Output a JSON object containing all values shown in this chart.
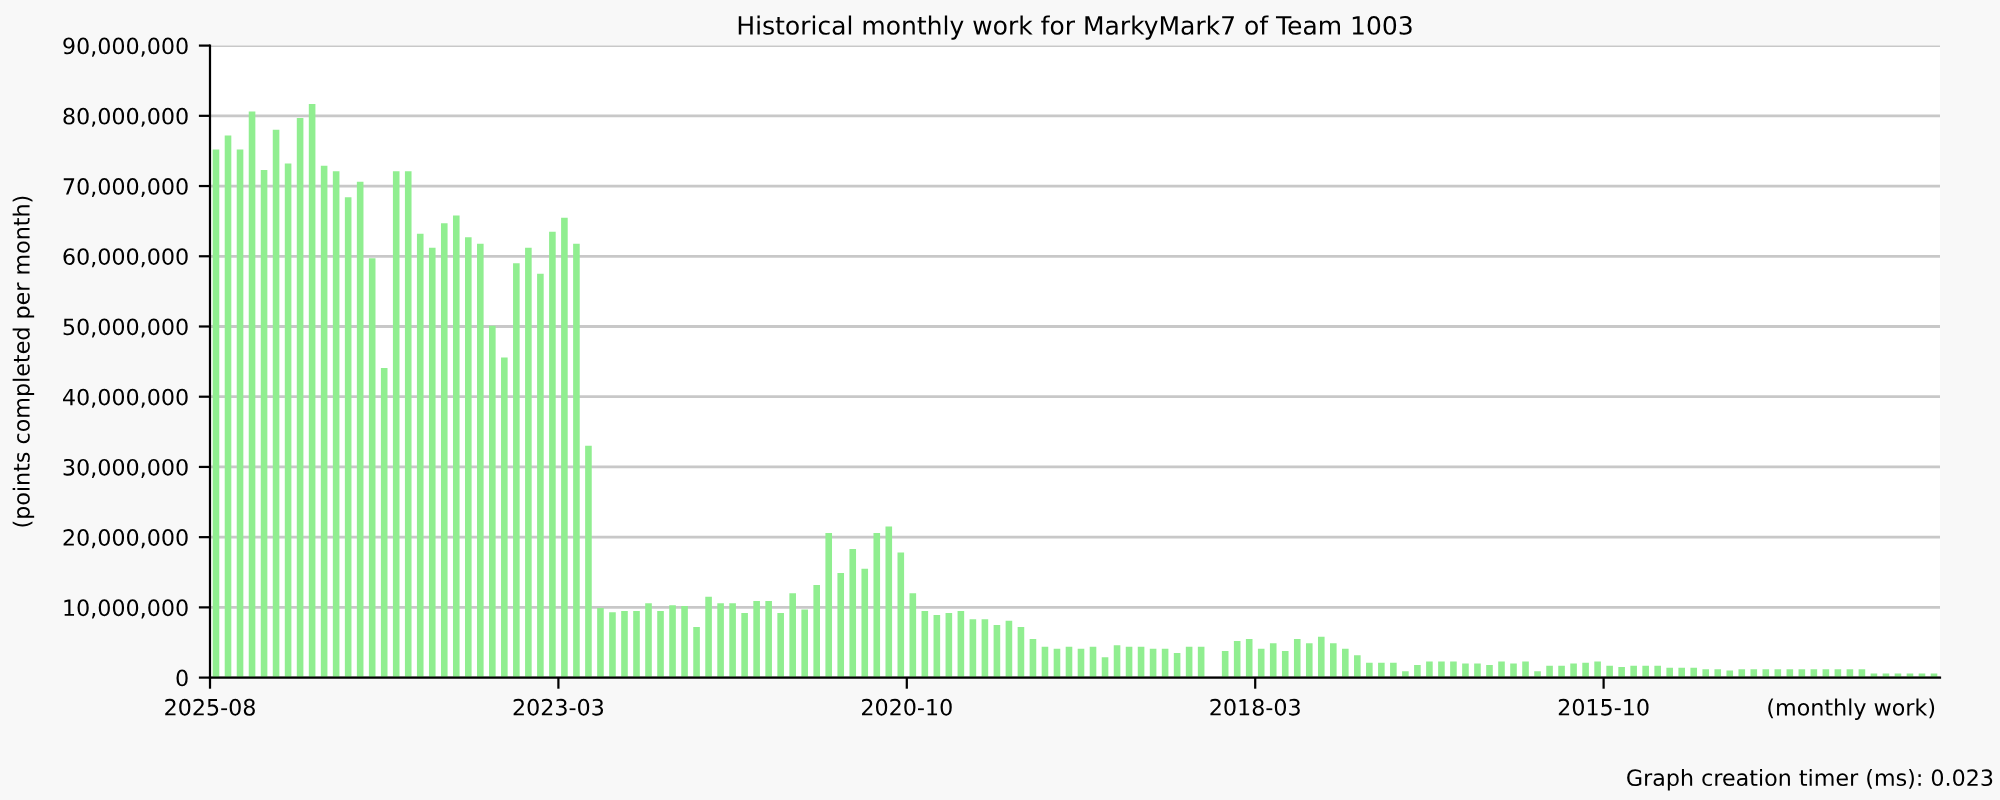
{
  "chart_data": {
    "type": "bar",
    "title": "Historical monthly work for MarkyMark7 of Team 1003",
    "ylabel": "(points completed per month)",
    "annotations": [
      "(monthly work)",
      "Graph creation timer (ms): 0.023"
    ],
    "categories": [
      "2025-08",
      null,
      null,
      null,
      null,
      null,
      null,
      null,
      null,
      null,
      null,
      null,
      null,
      null,
      null,
      null,
      null,
      null,
      null,
      null,
      null,
      null,
      null,
      null,
      null,
      null,
      null,
      null,
      null,
      "2023-03",
      null,
      null,
      null,
      null,
      null,
      null,
      null,
      null,
      null,
      null,
      null,
      null,
      null,
      null,
      null,
      null,
      null,
      null,
      null,
      null,
      null,
      null,
      null,
      null,
      null,
      null,
      null,
      null,
      "2020-10",
      null,
      null,
      null,
      null,
      null,
      null,
      null,
      null,
      null,
      null,
      null,
      null,
      null,
      null,
      null,
      null,
      null,
      null,
      null,
      null,
      null,
      null,
      null,
      null,
      null,
      null,
      null,
      null,
      "2018-03",
      null,
      null,
      null,
      null,
      null,
      null,
      null,
      null,
      null,
      null,
      null,
      null,
      null,
      null,
      null,
      null,
      null,
      null,
      null,
      null,
      null,
      null,
      null,
      null,
      null,
      null,
      null,
      null,
      "2015-10",
      null,
      null,
      null,
      null,
      null,
      null,
      null,
      null,
      null,
      null,
      null,
      null,
      null,
      null,
      null,
      null,
      null,
      null,
      null,
      null,
      null,
      null,
      null,
      null,
      null,
      null,
      null
    ],
    "values": [
      75200000,
      77200000,
      75200000,
      80600000,
      72300000,
      78000000,
      73200000,
      79700000,
      81700000,
      72900000,
      72100000,
      68400000,
      70600000,
      59700000,
      44100000,
      72100000,
      72100000,
      63200000,
      61200000,
      64700000,
      65800000,
      62700000,
      61800000,
      50100000,
      45600000,
      59000000,
      61200000,
      57500000,
      63500000,
      65500000,
      61800000,
      33000000,
      9900000,
      9300000,
      9500000,
      9500000,
      10600000,
      9500000,
      10300000,
      10200000,
      7200000,
      11500000,
      10600000,
      10600000,
      9200000,
      10900000,
      10900000,
      9200000,
      12000000,
      9700000,
      13200000,
      20600000,
      14900000,
      18300000,
      15500000,
      20600000,
      21500000,
      17800000,
      12000000,
      9500000,
      8900000,
      9200000,
      9500000,
      8300000,
      8300000,
      7500000,
      8100000,
      7200000,
      5500000,
      4400000,
      4100000,
      4400000,
      4100000,
      4400000,
      2900000,
      4600000,
      4400000,
      4400000,
      4100000,
      4100000,
      3500000,
      4400000,
      4400000,
      0,
      3800000,
      5200000,
      5500000,
      4100000,
      4900000,
      3800000,
      5500000,
      4900000,
      5800000,
      4900000,
      4100000,
      3200000,
      2100000,
      2100000,
      2100000,
      900000,
      1800000,
      2300000,
      2300000,
      2300000,
      2000000,
      2000000,
      1800000,
      2300000,
      2000000,
      2300000,
      900000,
      1700000,
      1700000,
      2000000,
      2100000,
      2300000,
      1700000,
      1500000,
      1700000,
      1700000,
      1700000,
      1400000,
      1400000,
      1400000,
      1200000,
      1200000,
      1000000,
      1200000,
      1200000,
      1200000,
      1200000,
      1200000,
      1200000,
      1200000,
      1200000,
      1200000,
      1200000,
      1200000,
      600000,
      600000,
      600000,
      600000,
      600000,
      600000
    ],
    "color": "#90ee90",
    "ylim": [
      0,
      90000000
    ],
    "yticks": [
      0,
      {
        "value": 10000000,
        "label": "10,000,000"
      },
      {
        "value": 20000000,
        "label": "20,000,000"
      },
      {
        "value": 30000000,
        "label": "30,000,000"
      },
      {
        "value": 40000000,
        "label": "40,000,000"
      },
      {
        "value": 50000000,
        "label": "50,000,000"
      },
      {
        "value": 60000000,
        "label": "60,000,000"
      },
      {
        "value": 70000000,
        "label": "70,000,000"
      },
      {
        "value": 80000000,
        "label": "80,000,000"
      },
      {
        "value": 90000000,
        "label": "90,000,000"
      }
    ],
    "grid": "y"
  }
}
